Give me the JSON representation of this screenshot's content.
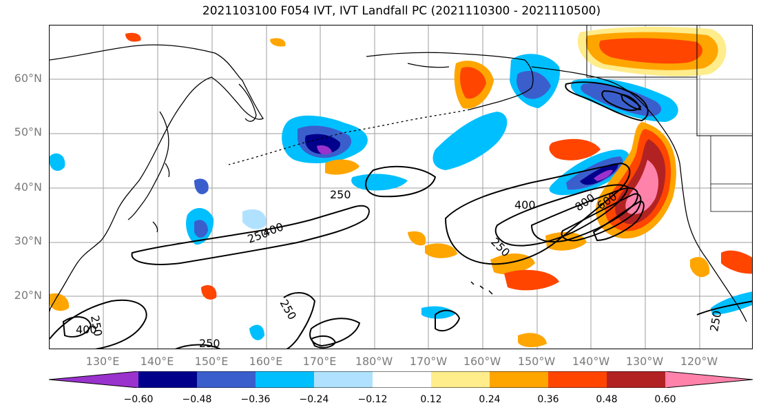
{
  "title": "2021103100 F054 IVT, IVT Landfall PC (2021110300 - 2021110500)",
  "lat_labels": [
    "60°N",
    "50°N",
    "40°N",
    "30°N",
    "20°N"
  ],
  "lon_labels": [
    "130°E",
    "140°E",
    "150°E",
    "160°E",
    "170°E",
    "180°W",
    "170°W",
    "160°W",
    "150°W",
    "140°W",
    "130°W",
    "120°W"
  ],
  "contour_labels": [
    "250",
    "400",
    "250",
    "400",
    "800",
    "600",
    "250",
    "250",
    "250",
    "400",
    "250",
    "250"
  ],
  "colorbar": {
    "colors": [
      "#9a32cd",
      "#00008b",
      "#3a5fcd",
      "#00bfff",
      "#b0e2ff",
      "#ffffff",
      "#ffec8b",
      "#ffa500",
      "#ff4500",
      "#b22222",
      "#ff82ab"
    ],
    "tick_labels": [
      "−0.60",
      "−0.48",
      "−0.36",
      "−0.24",
      "−0.12",
      "0.12",
      "0.24",
      "0.36",
      "0.48",
      "0.60"
    ]
  }
}
